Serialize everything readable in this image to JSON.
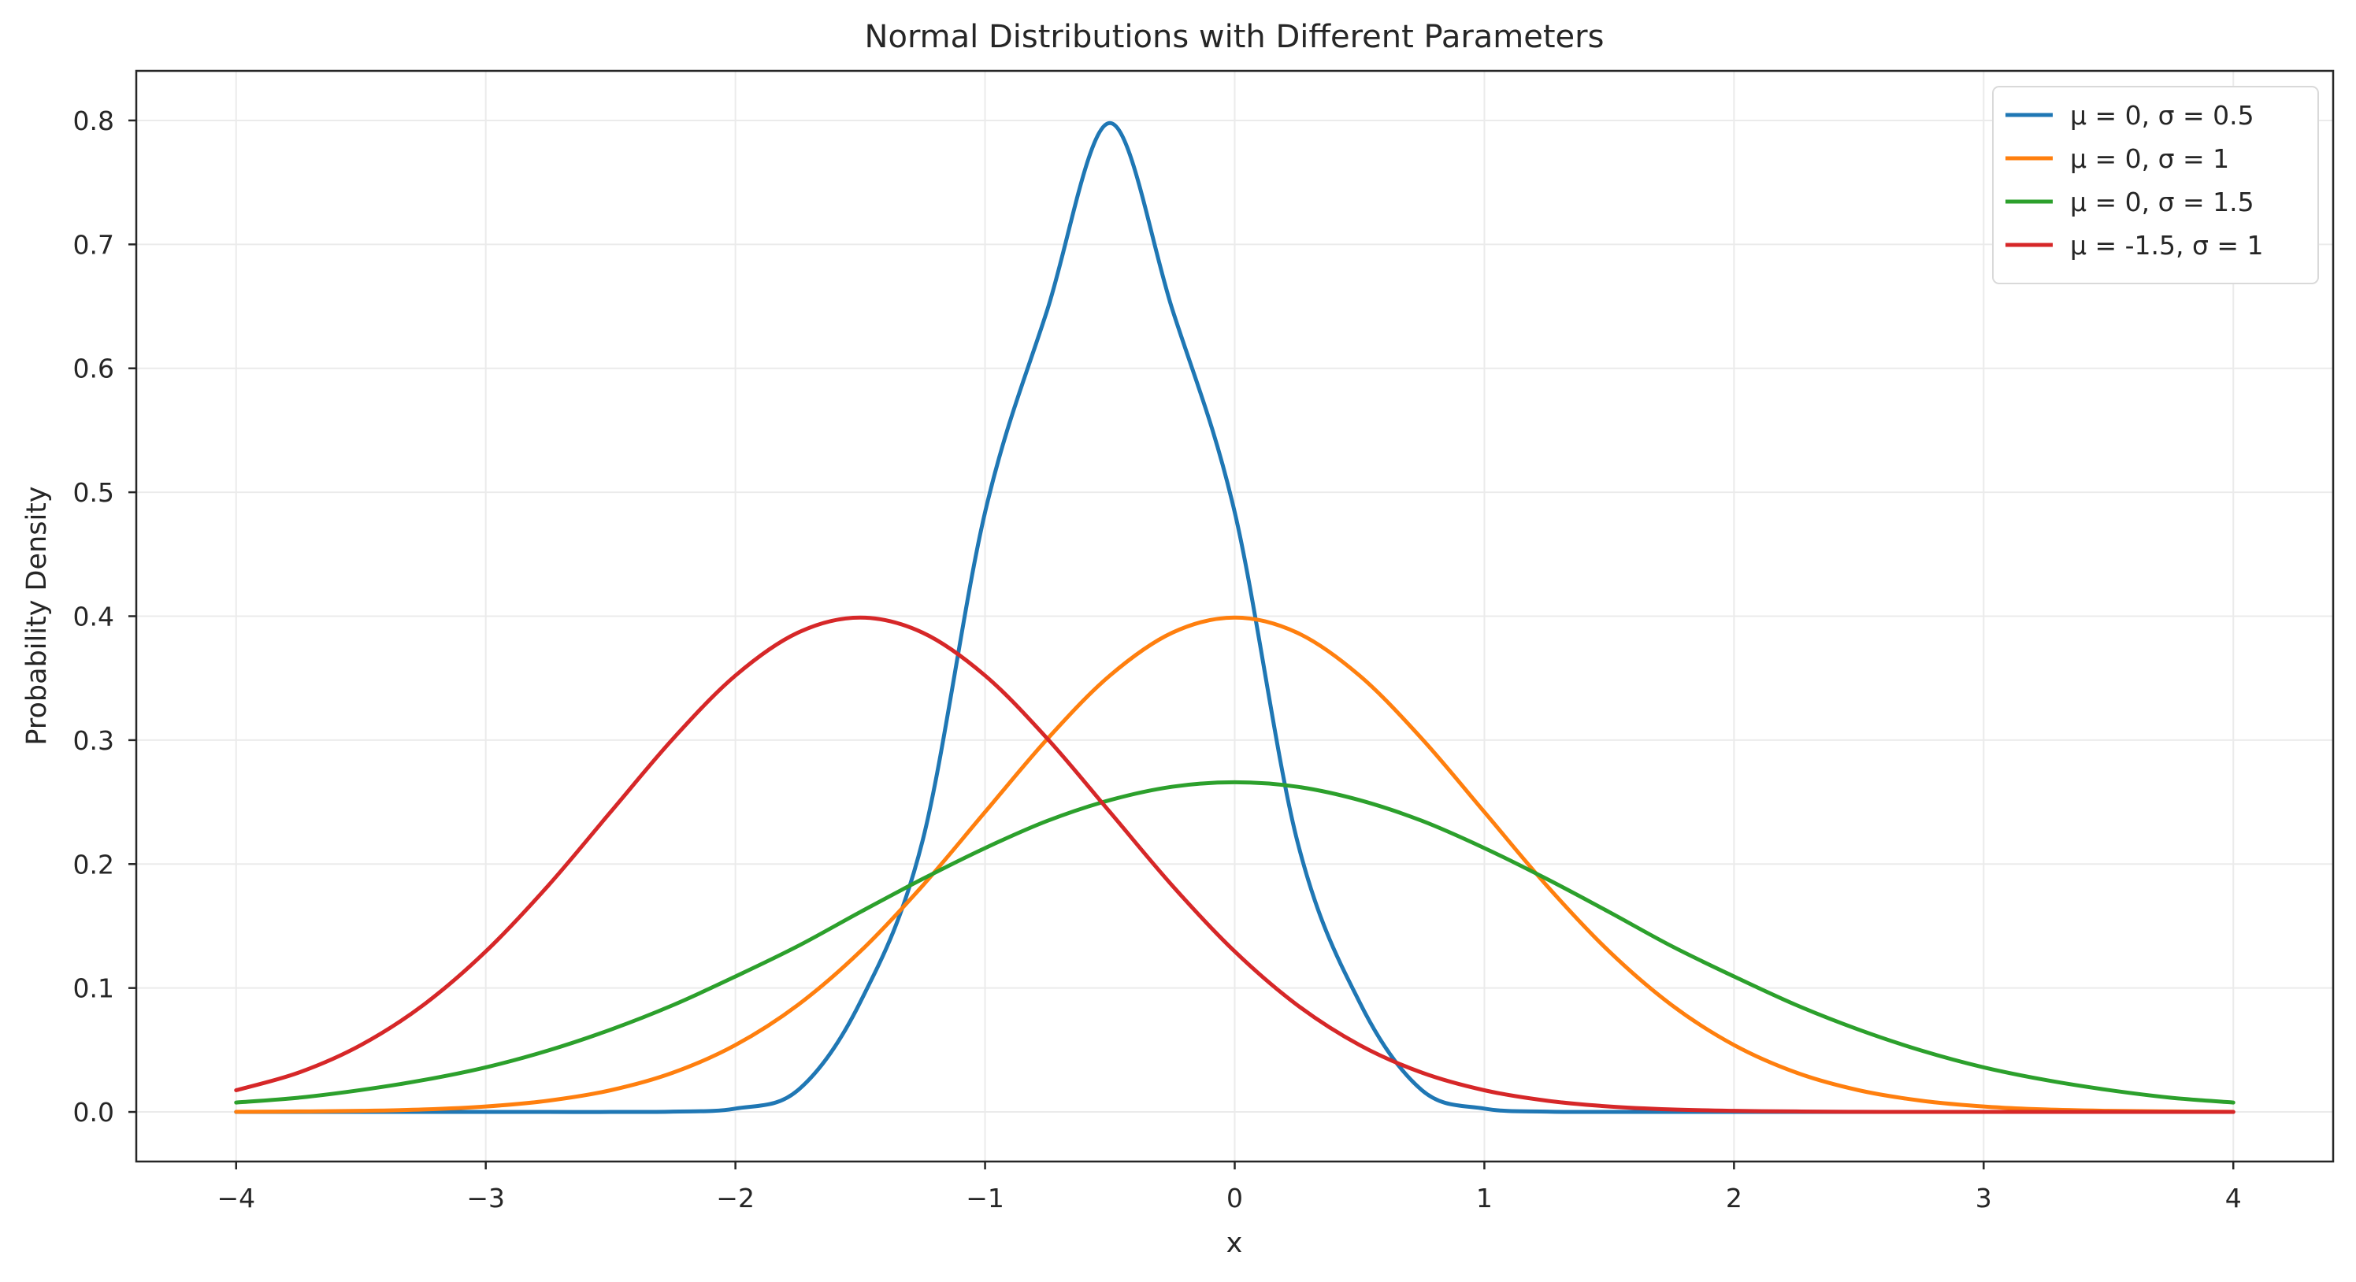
{
  "chart_data": {
    "type": "line",
    "title": "Normal Distributions with Different Parameters",
    "xlabel": "x",
    "ylabel": "Probability Density",
    "xlim": [
      -4.4,
      4.4
    ],
    "ylim": [
      -0.04,
      0.84
    ],
    "x_ticks": [
      -4,
      -3,
      -2,
      -1,
      0,
      1,
      2,
      3,
      4
    ],
    "x_tick_labels": [
      "−4",
      "−3",
      "−2",
      "−1",
      "0",
      "1",
      "2",
      "3",
      "4"
    ],
    "y_ticks": [
      0.0,
      0.1,
      0.2,
      0.3,
      0.4,
      0.5,
      0.6,
      0.7,
      0.8
    ],
    "y_tick_labels": [
      "0.0",
      "0.1",
      "0.2",
      "0.3",
      "0.4",
      "0.5",
      "0.6",
      "0.7",
      "0.8"
    ],
    "grid": true,
    "legend_position": "top-right",
    "x": [
      -4.0,
      -3.75,
      -3.5,
      -3.25,
      -3.0,
      -2.75,
      -2.5,
      -2.25,
      -2.0,
      -1.75,
      -1.5,
      -1.25,
      -1.0,
      -0.75,
      -0.5,
      -0.25,
      0.0,
      0.25,
      0.5,
      0.75,
      1.0,
      1.25,
      1.5,
      1.75,
      2.0,
      2.25,
      2.5,
      2.75,
      3.0,
      3.25,
      3.5,
      3.75,
      4.0
    ],
    "series": [
      {
        "name": "μ = 0, σ = 0.5",
        "color": "#1f77b4",
        "values": [
          0.0,
          0.0,
          0.0,
          0.0,
          0.0,
          0.0,
          0.0,
          0.0003,
          0.0027,
          0.0175,
          0.0886,
          0.2191,
          0.4839,
          0.6476,
          0.7979,
          0.6476,
          0.4839,
          0.2191,
          0.0886,
          0.0175,
          0.0027,
          0.0003,
          0.0,
          0.0,
          0.0,
          0.0,
          0.0,
          0.0,
          0.0,
          0.0,
          0.0,
          0.0,
          0.0
        ]
      },
      {
        "name": "μ = 0, σ = 1",
        "color": "#ff7f0e",
        "values": [
          0.0001,
          0.0004,
          0.0009,
          0.002,
          0.0044,
          0.0091,
          0.0175,
          0.0317,
          0.054,
          0.0863,
          0.1295,
          0.1826,
          0.242,
          0.3011,
          0.3521,
          0.3867,
          0.3989,
          0.3867,
          0.3521,
          0.3011,
          0.242,
          0.1826,
          0.1295,
          0.0863,
          0.054,
          0.0317,
          0.0175,
          0.0091,
          0.0044,
          0.002,
          0.0009,
          0.0004,
          0.0001
        ]
      },
      {
        "name": "μ = 0, σ = 1.5",
        "color": "#2ca02c",
        "values": [
          0.0076,
          0.0115,
          0.0177,
          0.0257,
          0.036,
          0.0496,
          0.0664,
          0.0862,
          0.1093,
          0.1338,
          0.1613,
          0.188,
          0.2129,
          0.2349,
          0.2516,
          0.2624,
          0.266,
          0.2624,
          0.2516,
          0.2349,
          0.2129,
          0.188,
          0.1613,
          0.1338,
          0.1093,
          0.0862,
          0.0664,
          0.0496,
          0.036,
          0.0257,
          0.0177,
          0.0115,
          0.0076
        ]
      },
      {
        "name": "μ = -1.5, σ = 1",
        "color": "#d62728",
        "values": [
          0.0175,
          0.0317,
          0.054,
          0.0863,
          0.1295,
          0.1826,
          0.242,
          0.3011,
          0.3521,
          0.3867,
          0.3989,
          0.3867,
          0.3521,
          0.3011,
          0.242,
          0.1826,
          0.1295,
          0.0863,
          0.054,
          0.0317,
          0.0175,
          0.0091,
          0.0044,
          0.002,
          0.0009,
          0.0004,
          0.0001,
          0.0,
          0.0,
          0.0,
          0.0,
          0.0,
          0.0
        ]
      }
    ]
  }
}
